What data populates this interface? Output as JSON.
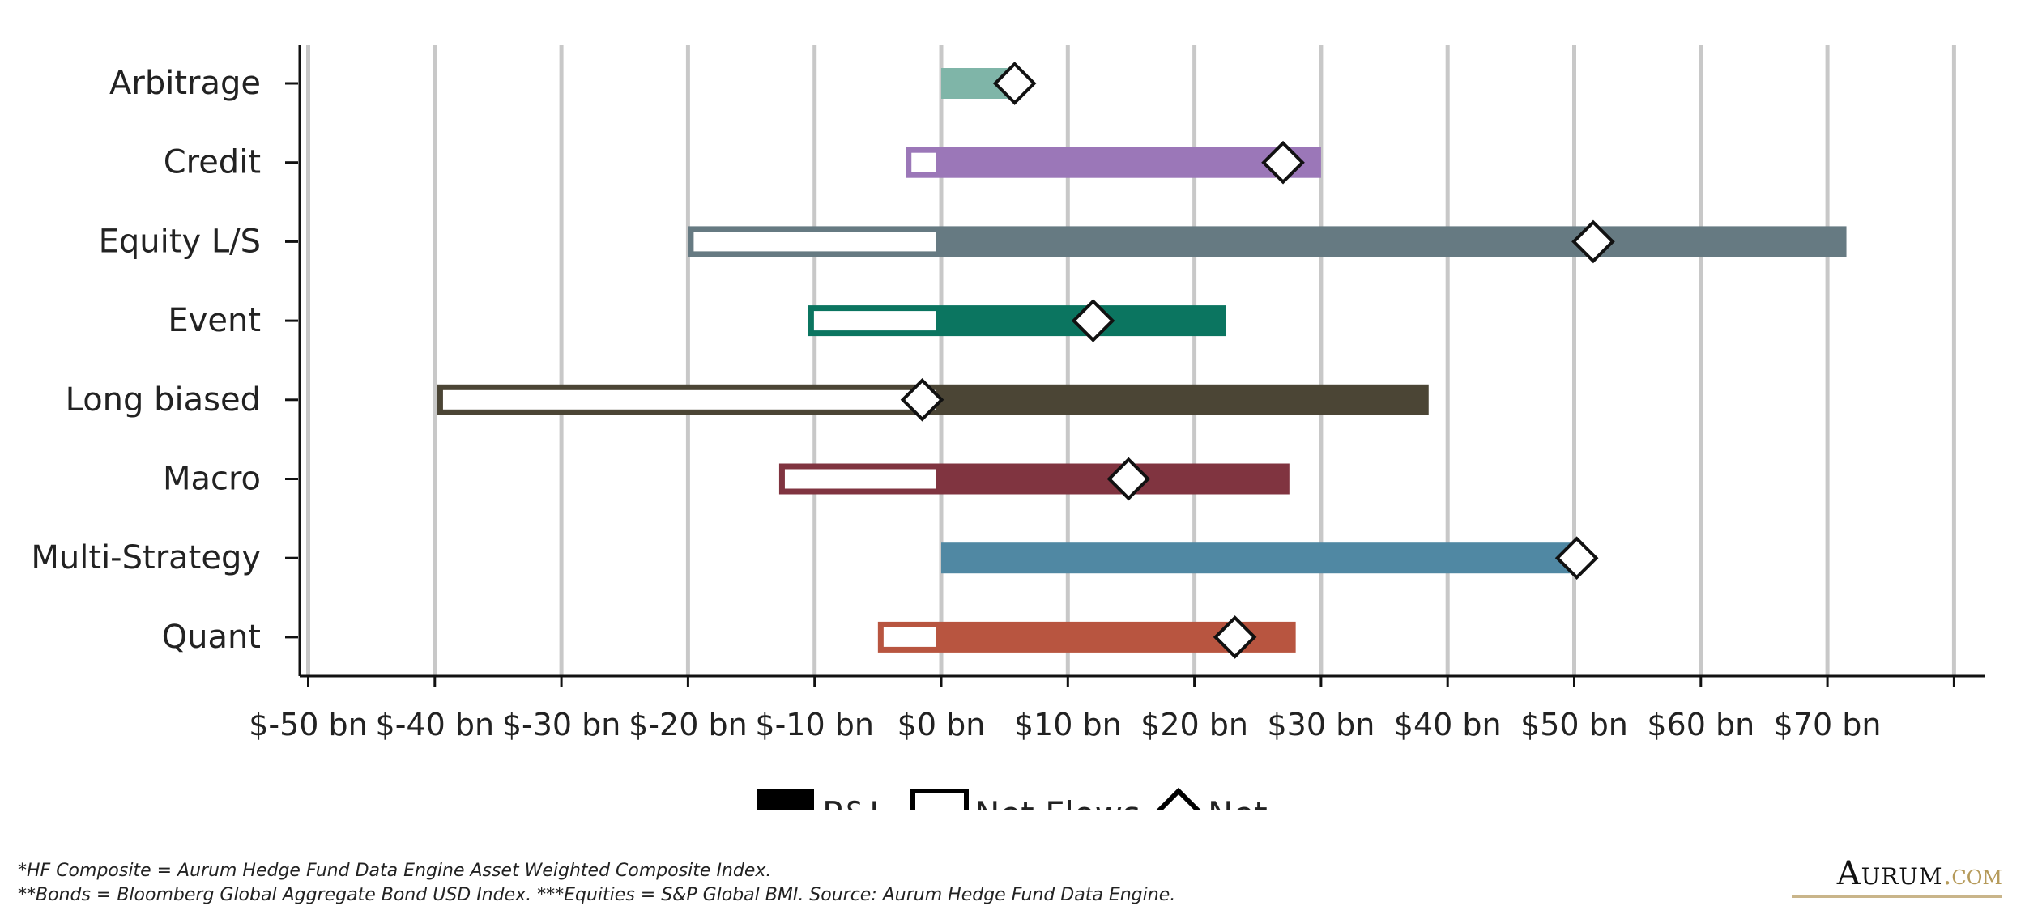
{
  "chart_data": {
    "type": "bar",
    "orientation": "horizontal",
    "categories": [
      "Arbitrage",
      "Credit",
      "Equity L/S",
      "Event",
      "Long biased",
      "Macro",
      "Multi-Strategy",
      "Quant"
    ],
    "series": [
      {
        "name": "P&L",
        "values": [
          5.5,
          30,
          71.5,
          22.5,
          38.5,
          27.5,
          50,
          28
        ]
      },
      {
        "name": "Net Flows",
        "values": [
          0,
          -2.8,
          -20,
          -10.5,
          -39.8,
          -12.8,
          0,
          -5
        ]
      },
      {
        "name": "Net",
        "values": [
          5.8,
          27,
          51.5,
          12,
          -1.5,
          14.8,
          50.2,
          23.2
        ]
      }
    ],
    "category_colors": [
      "#7fb5a8",
      "#9b77b8",
      "#667a82",
      "#0b7560",
      "#4b4535",
      "#803440",
      "#5088a3",
      "#b85540"
    ],
    "xticks": [
      -50,
      -40,
      -30,
      -20,
      -10,
      0,
      10,
      20,
      30,
      40,
      50,
      60,
      70
    ],
    "xtick_labels": [
      "$-50 bn",
      "$-40 bn",
      "$-30 bn",
      "$-20 bn",
      "$-10 bn",
      "$0 bn",
      "$10 bn",
      "$20 bn",
      "$30 bn",
      "$40 bn",
      "$50 bn",
      "$60 bn",
      "$70 bn"
    ],
    "xlim": [
      -51,
      82
    ],
    "grid": "vertical",
    "legend_position": "bottom-center",
    "title": "",
    "xlabel": "",
    "ylabel": ""
  },
  "footnotes": [
    "*HF Composite = Aurum Hedge Fund Data Engine Asset Weighted Composite Index.",
    "**Bonds = Bloomberg Global Aggregate Bond USD Index. ***Equities = S&P Global BMI. Source: Aurum Hedge Fund Data Engine."
  ],
  "brand": {
    "name": "Aurum",
    "suffix": ".com"
  }
}
